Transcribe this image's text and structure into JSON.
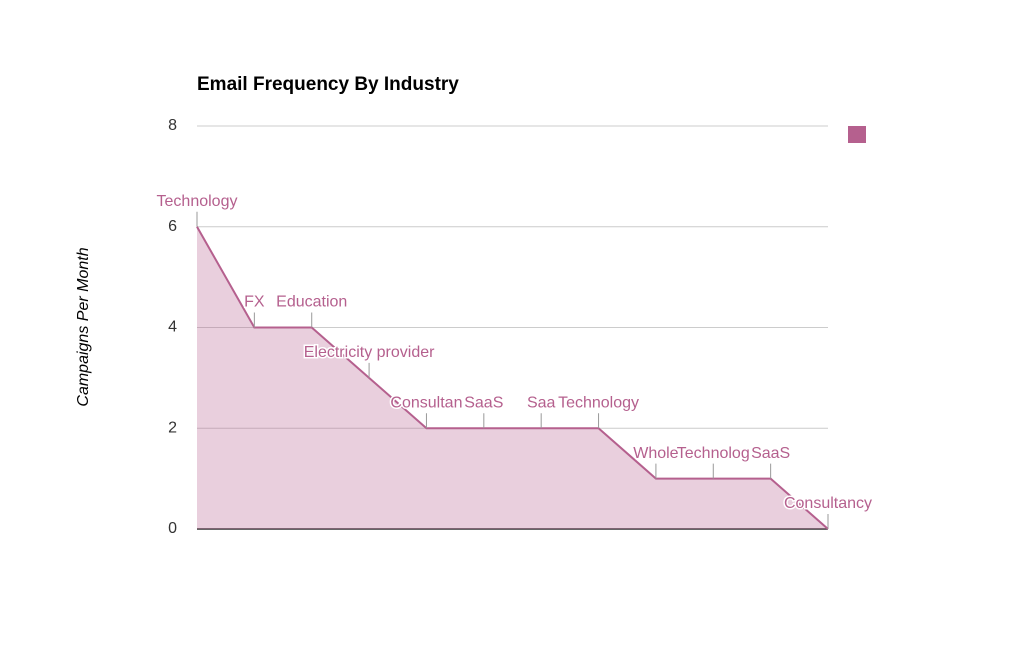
{
  "chart_data": {
    "type": "area",
    "title": "Email Frequency By Industry",
    "ylabel": "Campaigns Per Month",
    "categories": [
      "Technology",
      "FX",
      "Education",
      "Electricity provider",
      "Consultan",
      "SaaS",
      "Saa",
      "Technology",
      "Whole",
      "Technolog",
      "SaaS",
      "Consultancy"
    ],
    "series": [
      {
        "color": "#b5608e",
        "values": [
          6,
          4,
          4,
          3,
          2,
          2,
          2,
          2,
          1,
          1,
          1,
          0
        ]
      }
    ],
    "ylim": [
      0,
      8
    ],
    "yticks": [
      0,
      2,
      4,
      6,
      8
    ],
    "grid": true,
    "legend": "top-right"
  }
}
